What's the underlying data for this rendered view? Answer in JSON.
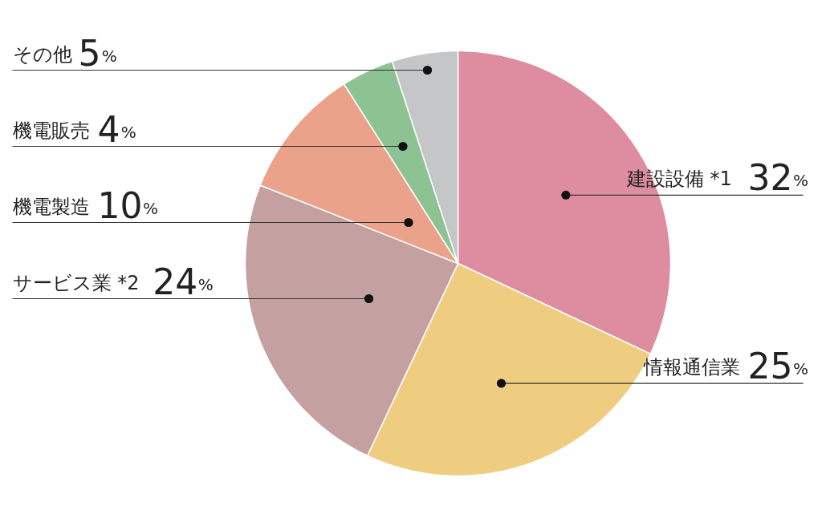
{
  "chart_data": {
    "type": "pie",
    "categories": [
      "建設設備 *1",
      "情報通信業",
      "サービス業 *2",
      "機電製造",
      "機電販売",
      "その他"
    ],
    "values": [
      32,
      25,
      24,
      10,
      4,
      5
    ],
    "value_labels": [
      "32%",
      "25%",
      "24%",
      "10%",
      "4%",
      "5%"
    ],
    "colors": [
      "#de8ca0",
      "#eecd80",
      "#c4a0a0",
      "#eaa38a",
      "#8dc393",
      "#c4c6c8"
    ]
  }
}
